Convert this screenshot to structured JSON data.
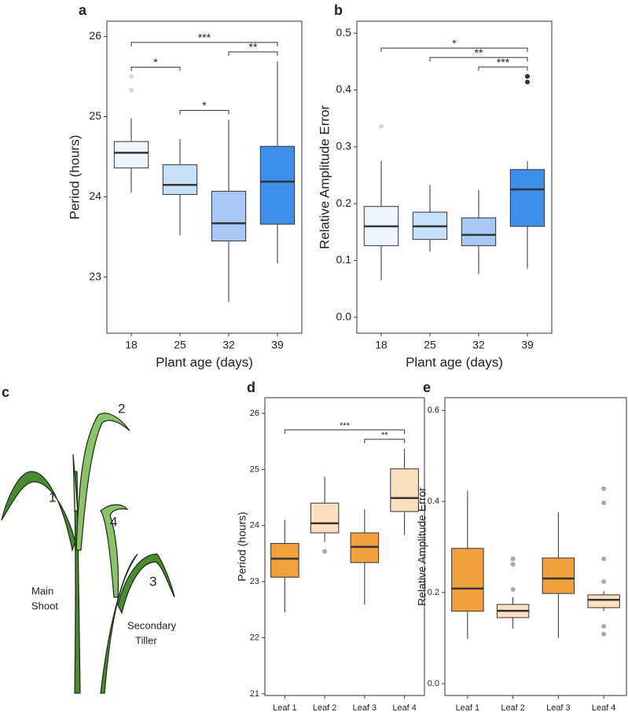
{
  "chart_data": [
    {
      "type": "box",
      "panel_label": "a",
      "x_label": "Plant age (days)",
      "y_label": "Period (hours)",
      "categories": [
        "18",
        "25",
        "32",
        "39"
      ],
      "ylim": [
        22.3,
        26.19
      ],
      "yticks": [
        23,
        24,
        25,
        26
      ],
      "boxes": [
        {
          "min": 24.05,
          "q1": 24.36,
          "median": 24.55,
          "q3": 24.69,
          "max": 24.98,
          "outliers": [
            25.5,
            25.33
          ],
          "color": "#eef5fd",
          "outlier_color": "#d9d9d9"
        },
        {
          "min": 23.52,
          "q1": 24.03,
          "median": 24.15,
          "q3": 24.4,
          "max": 24.72,
          "outliers": [],
          "color": "#c9dff7",
          "outlier_color": "#d9d9d9"
        },
        {
          "min": 22.69,
          "q1": 23.45,
          "median": 23.67,
          "q3": 24.07,
          "max": 24.96,
          "outliers": [],
          "color": "#a6c8f2",
          "outlier_color": "#d9d9d9"
        },
        {
          "min": 23.17,
          "q1": 23.66,
          "median": 24.19,
          "q3": 24.63,
          "max": 25.69,
          "outliers": [],
          "color": "#3f8ee9",
          "outlier_color": "#d9d9d9"
        }
      ],
      "comparisons": [
        {
          "between": [
            "18",
            "25"
          ],
          "label": "*"
        },
        {
          "between": [
            "25",
            "32"
          ],
          "label": "*"
        },
        {
          "between": [
            "32",
            "39"
          ],
          "label": "**"
        },
        {
          "between": [
            "18",
            "39"
          ],
          "label": "***"
        }
      ]
    },
    {
      "type": "box",
      "panel_label": "b",
      "x_label": "Plant age (days)",
      "y_label": "Relative Amplitude Error",
      "categories": [
        "18",
        "25",
        "32",
        "39"
      ],
      "ylim": [
        -0.028,
        0.521
      ],
      "yticks": [
        {
          "value": 0,
          "label": "0.0"
        },
        0.1,
        0.2,
        0.3,
        0.4,
        0.5
      ],
      "boxes": [
        {
          "min": 0.065,
          "q1": 0.126,
          "median": 0.16,
          "q3": 0.195,
          "max": 0.275,
          "outliers": [
            0.336
          ],
          "color": "#eef5fd",
          "outlier_color": "#d9d9d9"
        },
        {
          "min": 0.116,
          "q1": 0.137,
          "median": 0.16,
          "q3": 0.185,
          "max": 0.233,
          "outliers": [],
          "color": "#c9dff7",
          "outlier_color": "#d9d9d9"
        },
        {
          "min": 0.076,
          "q1": 0.126,
          "median": 0.145,
          "q3": 0.175,
          "max": 0.224,
          "outliers": [],
          "color": "#a6c8f2",
          "outlier_color": "#d9d9d9"
        },
        {
          "min": 0.086,
          "q1": 0.16,
          "median": 0.225,
          "q3": 0.26,
          "max": 0.275,
          "outliers": [
            0.424,
            0.414
          ],
          "color": "#3f8ee9",
          "outlier_color": "#333333"
        }
      ],
      "comparisons": [
        {
          "between": [
            "32",
            "39"
          ],
          "label": "***"
        },
        {
          "between": [
            "25",
            "39"
          ],
          "label": "**"
        },
        {
          "between": [
            "18",
            "39"
          ],
          "label": "*"
        }
      ]
    },
    {
      "type": "box",
      "panel_label": "d",
      "y_label": "Period (hours)",
      "categories": [
        "Leaf 1",
        "Leaf 2",
        "Leaf 3",
        "Leaf 4"
      ],
      "ylim": [
        20.97,
        26.28
      ],
      "yticks": [
        21,
        22,
        23,
        24,
        25,
        26
      ],
      "boxes": [
        {
          "min": 22.45,
          "q1": 23.08,
          "median": 23.41,
          "q3": 23.68,
          "max": 24.1,
          "outliers": [],
          "color": "#f0a03c",
          "outlier_color": "#aaaaaa"
        },
        {
          "min": 23.71,
          "q1": 23.87,
          "median": 24.04,
          "q3": 24.4,
          "max": 24.87,
          "outliers": [
            23.54
          ],
          "color": "#fbe0c0",
          "outlier_color": "#aaaaaa"
        },
        {
          "min": 22.59,
          "q1": 23.34,
          "median": 23.62,
          "q3": 23.87,
          "max": 24.29,
          "outliers": [],
          "color": "#f0a03c",
          "outlier_color": "#aaaaaa"
        },
        {
          "min": 23.83,
          "q1": 24.25,
          "median": 24.49,
          "q3": 25.01,
          "max": 25.37,
          "outliers": [],
          "color": "#fbe0c0",
          "outlier_color": "#aaaaaa"
        }
      ],
      "comparisons": [
        {
          "between": [
            "Leaf 3",
            "Leaf 4"
          ],
          "label": "**"
        },
        {
          "between": [
            "Leaf 1",
            "Leaf 4"
          ],
          "label": "***"
        }
      ]
    },
    {
      "type": "box",
      "panel_label": "e",
      "y_label": "Relative Amplitude Error",
      "categories": [
        "Leaf 1",
        "Leaf 2",
        "Leaf 3",
        "Leaf 4"
      ],
      "ylim": [
        -0.026,
        0.628
      ],
      "yticks": [
        {
          "value": 0,
          "label": "0.0"
        },
        0.2,
        0.4,
        0.6
      ],
      "boxes": [
        {
          "min": 0.098,
          "q1": 0.159,
          "median": 0.209,
          "q3": 0.297,
          "max": 0.424,
          "outliers": [],
          "color": "#f0a03c",
          "outlier_color": "#aaaaaa"
        },
        {
          "min": 0.121,
          "q1": 0.145,
          "median": 0.16,
          "q3": 0.174,
          "max": 0.19,
          "outliers": [
            0.274,
            0.262,
            0.207
          ],
          "color": "#fbe0c0",
          "outlier_color": "#aaaaaa"
        },
        {
          "min": 0.1,
          "q1": 0.198,
          "median": 0.231,
          "q3": 0.276,
          "max": 0.376,
          "outliers": [],
          "color": "#f0a03c",
          "outlier_color": "#aaaaaa"
        },
        {
          "min": 0.16,
          "q1": 0.167,
          "median": 0.184,
          "q3": 0.195,
          "max": 0.203,
          "outliers": [
            0.428,
            0.397,
            0.274,
            0.224,
            0.126,
            0.109
          ],
          "color": "#fbe0c0",
          "outlier_color": "#aaaaaa"
        }
      ]
    }
  ],
  "illustration": {
    "panel_label": "c",
    "leaf_labels": [
      "1",
      "2",
      "3",
      "4"
    ],
    "main_shoot": [
      "Main",
      "Shoot"
    ],
    "secondary_tiller": [
      "Secondary",
      "Tiller"
    ]
  }
}
